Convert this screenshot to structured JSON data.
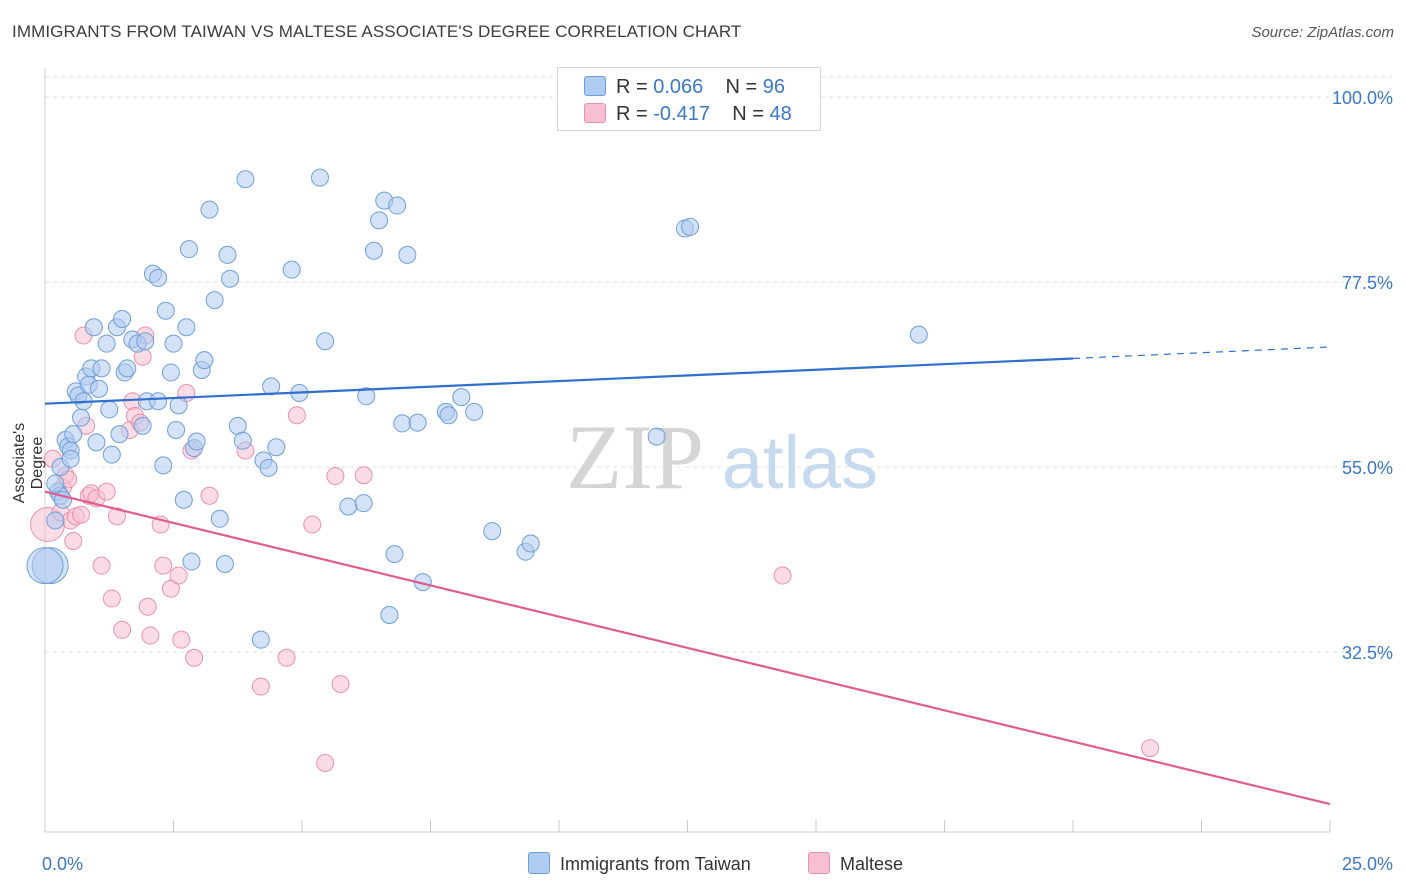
{
  "title": "IMMIGRANTS FROM TAIWAN VS MALTESE ASSOCIATE'S DEGREE CORRELATION CHART",
  "source": "Source: ZipAtlas.com",
  "watermark": {
    "zip": "ZIP",
    "atlas": "atlas"
  },
  "legend_top": {
    "rows": [
      {
        "r_label": "R =",
        "r_value": "0.066",
        "n_label": "N =",
        "n_value": "96"
      },
      {
        "r_label": "R =",
        "r_value": "-0.417",
        "n_label": "N =",
        "n_value": "48"
      }
    ]
  },
  "legend_bottom": {
    "series1": "Immigrants from Taiwan",
    "series2": "Maltese"
  },
  "colors": {
    "blue_fill": "#aecbf0",
    "blue_stroke": "#6f9fd8",
    "blue_line": "#2f6fce",
    "pink_fill": "#f7c0d2",
    "pink_stroke": "#e891ae",
    "pink_line": "#e05c8f",
    "tick_text": "#3b78c8",
    "grid": "#e2e2e2"
  },
  "chart_data": {
    "type": "scatter",
    "title": "IMMIGRANTS FROM TAIWAN VS MALTESE ASSOCIATE'S DEGREE CORRELATION CHART",
    "xlabel": "",
    "ylabel": "Associate's Degree",
    "xlim": [
      0,
      25
    ],
    "ylim": [
      9,
      102
    ],
    "x_tick_labels": [
      "0.0%",
      "25.0%"
    ],
    "y_ticks": [
      100,
      77.5,
      55,
      32.5
    ],
    "y_tick_labels": [
      "100.0%",
      "77.5%",
      "55.0%",
      "32.5%"
    ],
    "grid": true,
    "legend_position": "top-center",
    "series": [
      {
        "name": "Immigrants from Taiwan",
        "color": "#aecbf0",
        "trend": {
          "x": [
            0,
            20
          ],
          "y": [
            62.7,
            68.2
          ],
          "dashed_to_x": 25,
          "dashed_y": 69.6
        },
        "points": [
          [
            0.1,
            43.0
          ],
          [
            0.2,
            48.5
          ],
          [
            0.25,
            52.0
          ],
          [
            0.3,
            51.5
          ],
          [
            0.35,
            51.0
          ],
          [
            0.4,
            58.3
          ],
          [
            0.45,
            57.5
          ],
          [
            0.5,
            57.0
          ],
          [
            0.55,
            59.0
          ],
          [
            0.6,
            64.2
          ],
          [
            0.65,
            63.7
          ],
          [
            0.7,
            61.0
          ],
          [
            0.75,
            63.0
          ],
          [
            0.8,
            66.0
          ],
          [
            0.85,
            65.0
          ],
          [
            0.9,
            67.0
          ],
          [
            0.95,
            72.0
          ],
          [
            1.0,
            58.0
          ],
          [
            1.05,
            64.5
          ],
          [
            1.1,
            67.0
          ],
          [
            1.2,
            70.0
          ],
          [
            1.25,
            62.0
          ],
          [
            1.3,
            56.5
          ],
          [
            1.4,
            72.0
          ],
          [
            1.45,
            59.0
          ],
          [
            1.5,
            73.0
          ],
          [
            1.55,
            66.5
          ],
          [
            1.6,
            67.0
          ],
          [
            1.7,
            70.5
          ],
          [
            1.8,
            70.0
          ],
          [
            1.95,
            70.3
          ],
          [
            1.98,
            63.0
          ],
          [
            2.1,
            78.5
          ],
          [
            2.2,
            78.0
          ],
          [
            2.2,
            63.0
          ],
          [
            2.3,
            55.2
          ],
          [
            2.35,
            74.0
          ],
          [
            2.45,
            66.5
          ],
          [
            2.5,
            70.0
          ],
          [
            2.55,
            59.5
          ],
          [
            2.6,
            62.5
          ],
          [
            2.7,
            51.0
          ],
          [
            2.75,
            72.0
          ],
          [
            2.8,
            81.5
          ],
          [
            2.85,
            43.5
          ],
          [
            2.9,
            57.3
          ],
          [
            2.95,
            58.1
          ],
          [
            3.05,
            66.8
          ],
          [
            3.1,
            68.0
          ],
          [
            3.2,
            86.3
          ],
          [
            3.3,
            75.3
          ],
          [
            3.4,
            48.7
          ],
          [
            3.5,
            43.2
          ],
          [
            3.55,
            80.8
          ],
          [
            3.6,
            77.9
          ],
          [
            3.75,
            60.0
          ],
          [
            3.85,
            58.2
          ],
          [
            3.9,
            90.0
          ],
          [
            4.25,
            55.8
          ],
          [
            4.35,
            54.9
          ],
          [
            4.4,
            64.8
          ],
          [
            4.5,
            57.4
          ],
          [
            4.8,
            79.0
          ],
          [
            4.95,
            64.0
          ],
          [
            5.35,
            90.2
          ],
          [
            5.45,
            70.3
          ],
          [
            5.9,
            50.2
          ],
          [
            6.2,
            50.6
          ],
          [
            6.25,
            63.6
          ],
          [
            6.4,
            81.3
          ],
          [
            6.5,
            85.0
          ],
          [
            6.6,
            87.4
          ],
          [
            6.7,
            37.0
          ],
          [
            6.8,
            44.4
          ],
          [
            6.85,
            86.8
          ],
          [
            6.95,
            60.3
          ],
          [
            7.05,
            80.8
          ],
          [
            7.25,
            60.4
          ],
          [
            7.35,
            41.0
          ],
          [
            7.8,
            61.7
          ],
          [
            7.85,
            61.3
          ],
          [
            8.1,
            63.5
          ],
          [
            8.35,
            61.7
          ],
          [
            8.7,
            47.2
          ],
          [
            9.35,
            44.7
          ],
          [
            9.45,
            45.7
          ],
          [
            11.9,
            58.7
          ],
          [
            12.45,
            84.0
          ],
          [
            12.55,
            84.2
          ],
          [
            17.0,
            71.1
          ],
          [
            0.2,
            53.0
          ],
          [
            0.3,
            55.0
          ],
          [
            4.2,
            34.0
          ],
          [
            0.0,
            43.0
          ],
          [
            1.9,
            60.0
          ],
          [
            0.5,
            56.0
          ]
        ]
      },
      {
        "name": "Maltese",
        "color": "#f7c0d2",
        "trend": {
          "x": [
            0,
            25
          ],
          "y": [
            52.0,
            14.0
          ]
        },
        "points": [
          [
            0.05,
            48.0
          ],
          [
            0.15,
            56.0
          ],
          [
            0.3,
            49.5
          ],
          [
            0.35,
            52.5
          ],
          [
            0.4,
            54.0
          ],
          [
            0.45,
            53.5
          ],
          [
            0.5,
            48.5
          ],
          [
            0.55,
            46.0
          ],
          [
            0.6,
            49.0
          ],
          [
            0.7,
            49.2
          ],
          [
            0.75,
            71.0
          ],
          [
            0.8,
            60.0
          ],
          [
            0.85,
            51.5
          ],
          [
            0.9,
            51.8
          ],
          [
            1.0,
            51.2
          ],
          [
            1.1,
            43.0
          ],
          [
            1.2,
            52.0
          ],
          [
            1.3,
            39.0
          ],
          [
            1.4,
            49.0
          ],
          [
            1.5,
            35.2
          ],
          [
            1.65,
            59.5
          ],
          [
            1.7,
            63.0
          ],
          [
            1.75,
            61.2
          ],
          [
            1.85,
            60.4
          ],
          [
            1.9,
            68.4
          ],
          [
            1.95,
            71.0
          ],
          [
            2.0,
            38.0
          ],
          [
            2.05,
            34.5
          ],
          [
            2.25,
            48.0
          ],
          [
            2.3,
            43.0
          ],
          [
            2.45,
            40.2
          ],
          [
            2.6,
            41.8
          ],
          [
            2.65,
            34.0
          ],
          [
            2.75,
            64.0
          ],
          [
            2.85,
            57.0
          ],
          [
            2.9,
            31.8
          ],
          [
            3.2,
            51.5
          ],
          [
            3.9,
            57.0
          ],
          [
            4.2,
            28.3
          ],
          [
            4.7,
            31.8
          ],
          [
            4.9,
            61.3
          ],
          [
            5.2,
            48.0
          ],
          [
            5.45,
            19.0
          ],
          [
            5.65,
            53.9
          ],
          [
            5.75,
            28.6
          ],
          [
            6.2,
            54.0
          ],
          [
            14.35,
            41.8
          ],
          [
            21.5,
            20.8
          ]
        ]
      }
    ]
  }
}
